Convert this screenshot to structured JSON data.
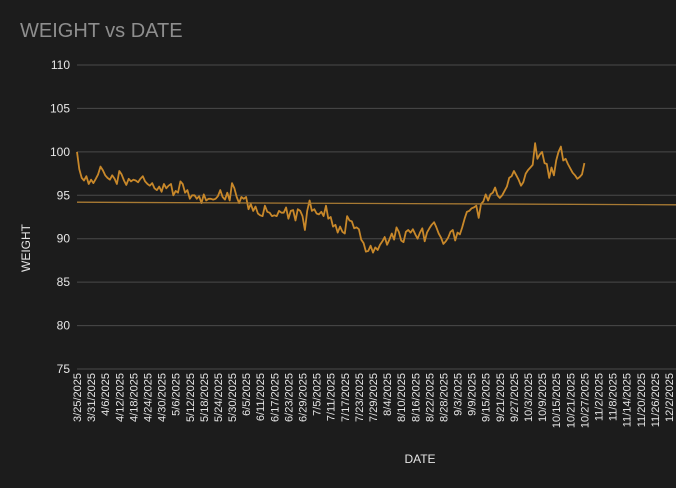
{
  "chart_data": {
    "type": "line",
    "title": "WEIGHT vs DATE",
    "xlabel": "DATE",
    "ylabel": "WEIGHT",
    "ylim": [
      75,
      110
    ],
    "yticks": [
      "110",
      "105",
      "100",
      "95",
      "90",
      "85",
      "80",
      "75"
    ],
    "xlim": [
      "3/25/2025",
      "12/5/2025"
    ],
    "xtick_labels": [
      "3/25/2025",
      "3/31/2025",
      "4/6/2025",
      "4/12/2025",
      "4/18/2025",
      "4/24/2025",
      "4/30/2025",
      "5/6/2025",
      "5/12/2025",
      "5/18/2025",
      "5/24/2025",
      "5/30/2025",
      "6/5/2025",
      "6/11/2025",
      "6/17/2025",
      "6/23/2025",
      "6/29/2025",
      "7/5/2025",
      "7/11/2025",
      "7/17/2025",
      "7/23/2025",
      "7/29/2025",
      "8/4/2025",
      "8/10/2025",
      "8/16/2025",
      "8/22/2025",
      "8/28/2025",
      "9/3/2025",
      "9/9/2025",
      "9/15/2025",
      "9/21/2025",
      "9/27/2025",
      "10/3/2025",
      "10/9/2025",
      "10/15/2025",
      "10/21/2025",
      "10/27/2025",
      "11/2/2025",
      "11/8/2025",
      "11/14/2025",
      "11/20/2025",
      "11/26/2025",
      "12/2/2025"
    ],
    "grid": true,
    "series": [
      {
        "color": "#c8882a",
        "points": [
          [
            "3/25/2025",
            100.0
          ],
          [
            "3/26/2025",
            98.0
          ],
          [
            "3/27/2025",
            97.0
          ],
          [
            "3/28/2025",
            96.7
          ],
          [
            "3/29/2025",
            97.2
          ],
          [
            "3/30/2025",
            96.3
          ],
          [
            "3/31/2025",
            96.8
          ],
          [
            "4/1/2025",
            96.4
          ],
          [
            "4/2/2025",
            96.9
          ],
          [
            "4/3/2025",
            97.4
          ],
          [
            "4/4/2025",
            98.3
          ],
          [
            "4/5/2025",
            97.9
          ],
          [
            "4/6/2025",
            97.3
          ],
          [
            "4/7/2025",
            97.0
          ],
          [
            "4/8/2025",
            96.8
          ],
          [
            "4/9/2025",
            97.3
          ],
          [
            "4/10/2025",
            96.9
          ],
          [
            "4/11/2025",
            96.3
          ],
          [
            "4/12/2025",
            97.8
          ],
          [
            "4/13/2025",
            97.4
          ],
          [
            "4/14/2025",
            96.7
          ],
          [
            "4/15/2025",
            96.2
          ],
          [
            "4/16/2025",
            96.9
          ],
          [
            "4/17/2025",
            96.6
          ],
          [
            "4/18/2025",
            96.8
          ],
          [
            "4/19/2025",
            96.7
          ],
          [
            "4/20/2025",
            96.5
          ],
          [
            "4/21/2025",
            96.9
          ],
          [
            "4/22/2025",
            97.2
          ],
          [
            "4/23/2025",
            96.6
          ],
          [
            "4/24/2025",
            96.3
          ],
          [
            "4/25/2025",
            96.1
          ],
          [
            "4/26/2025",
            96.4
          ],
          [
            "4/27/2025",
            95.8
          ],
          [
            "4/28/2025",
            95.6
          ],
          [
            "4/29/2025",
            96.0
          ],
          [
            "4/30/2025",
            95.4
          ],
          [
            "5/1/2025",
            96.3
          ],
          [
            "5/2/2025",
            95.8
          ],
          [
            "5/3/2025",
            96.1
          ],
          [
            "5/4/2025",
            96.3
          ],
          [
            "5/5/2025",
            95.0
          ],
          [
            "5/6/2025",
            95.5
          ],
          [
            "5/7/2025",
            95.3
          ],
          [
            "5/8/2025",
            96.6
          ],
          [
            "5/9/2025",
            96.3
          ],
          [
            "5/10/2025",
            95.3
          ],
          [
            "5/11/2025",
            95.6
          ],
          [
            "5/12/2025",
            94.6
          ],
          [
            "5/13/2025",
            95.0
          ],
          [
            "5/14/2025",
            95.0
          ],
          [
            "5/15/2025",
            94.6
          ],
          [
            "5/16/2025",
            94.9
          ],
          [
            "5/17/2025",
            94.1
          ],
          [
            "5/18/2025",
            95.1
          ],
          [
            "5/19/2025",
            94.4
          ],
          [
            "5/20/2025",
            94.6
          ],
          [
            "5/21/2025",
            94.6
          ],
          [
            "5/22/2025",
            94.5
          ],
          [
            "5/23/2025",
            94.6
          ],
          [
            "5/24/2025",
            94.9
          ],
          [
            "5/25/2025",
            95.6
          ],
          [
            "5/26/2025",
            94.8
          ],
          [
            "5/27/2025",
            94.5
          ],
          [
            "5/28/2025",
            95.3
          ],
          [
            "5/29/2025",
            94.4
          ],
          [
            "5/30/2025",
            96.4
          ],
          [
            "5/31/2025",
            95.8
          ],
          [
            "6/1/2025",
            94.8
          ],
          [
            "6/2/2025",
            94.1
          ],
          [
            "6/3/2025",
            94.8
          ],
          [
            "6/4/2025",
            94.6
          ],
          [
            "6/5/2025",
            94.8
          ],
          [
            "6/6/2025",
            93.4
          ],
          [
            "6/7/2025",
            94.0
          ],
          [
            "6/8/2025",
            93.2
          ],
          [
            "6/9/2025",
            93.7
          ],
          [
            "6/10/2025",
            92.9
          ],
          [
            "6/11/2025",
            92.7
          ],
          [
            "6/12/2025",
            92.6
          ],
          [
            "6/13/2025",
            93.8
          ],
          [
            "6/14/2025",
            93.1
          ],
          [
            "6/15/2025",
            93.0
          ],
          [
            "6/16/2025",
            92.6
          ],
          [
            "6/17/2025",
            92.7
          ],
          [
            "6/18/2025",
            92.6
          ],
          [
            "6/19/2025",
            93.2
          ],
          [
            "6/20/2025",
            93.0
          ],
          [
            "6/21/2025",
            93.0
          ],
          [
            "6/22/2025",
            93.6
          ],
          [
            "6/23/2025",
            92.3
          ],
          [
            "6/24/2025",
            93.2
          ],
          [
            "6/25/2025",
            93.3
          ],
          [
            "6/26/2025",
            92.1
          ],
          [
            "6/27/2025",
            93.4
          ],
          [
            "6/28/2025",
            93.2
          ],
          [
            "6/29/2025",
            92.6
          ],
          [
            "6/30/2025",
            91.0
          ],
          [
            "7/1/2025",
            93.2
          ],
          [
            "7/2/2025",
            94.4
          ],
          [
            "7/3/2025",
            93.2
          ],
          [
            "7/4/2025",
            93.4
          ],
          [
            "7/5/2025",
            92.9
          ],
          [
            "7/6/2025",
            92.8
          ],
          [
            "7/7/2025",
            93.1
          ],
          [
            "7/8/2025",
            92.6
          ],
          [
            "7/9/2025",
            93.8
          ],
          [
            "7/10/2025",
            92.3
          ],
          [
            "7/11/2025",
            92.5
          ],
          [
            "7/12/2025",
            91.4
          ],
          [
            "7/13/2025",
            91.6
          ],
          [
            "7/14/2025",
            90.7
          ],
          [
            "7/15/2025",
            91.4
          ],
          [
            "7/16/2025",
            90.8
          ],
          [
            "7/17/2025",
            90.6
          ],
          [
            "7/18/2025",
            92.6
          ],
          [
            "7/19/2025",
            92.1
          ],
          [
            "7/20/2025",
            92.0
          ],
          [
            "7/21/2025",
            91.2
          ],
          [
            "7/22/2025",
            91.3
          ],
          [
            "7/23/2025",
            91.1
          ],
          [
            "7/24/2025",
            89.9
          ],
          [
            "7/25/2025",
            89.5
          ],
          [
            "7/26/2025",
            88.5
          ],
          [
            "7/27/2025",
            88.6
          ],
          [
            "7/28/2025",
            89.2
          ],
          [
            "7/29/2025",
            88.4
          ],
          [
            "7/30/2025",
            89.0
          ],
          [
            "7/31/2025",
            88.7
          ],
          [
            "8/1/2025",
            89.3
          ],
          [
            "8/2/2025",
            89.7
          ],
          [
            "8/3/2025",
            90.2
          ],
          [
            "8/4/2025",
            89.3
          ],
          [
            "8/5/2025",
            89.9
          ],
          [
            "8/6/2025",
            90.6
          ],
          [
            "8/7/2025",
            89.9
          ],
          [
            "8/8/2025",
            91.3
          ],
          [
            "8/9/2025",
            90.8
          ],
          [
            "8/10/2025",
            89.8
          ],
          [
            "8/11/2025",
            89.6
          ],
          [
            "8/12/2025",
            90.8
          ],
          [
            "8/13/2025",
            91.0
          ],
          [
            "8/14/2025",
            90.7
          ],
          [
            "8/15/2025",
            91.1
          ],
          [
            "8/16/2025",
            90.5
          ],
          [
            "8/17/2025",
            90.0
          ],
          [
            "8/18/2025",
            90.7
          ],
          [
            "8/19/2025",
            91.2
          ],
          [
            "8/20/2025",
            89.7
          ],
          [
            "8/21/2025",
            90.7
          ],
          [
            "8/22/2025",
            91.2
          ],
          [
            "8/23/2025",
            91.6
          ],
          [
            "8/24/2025",
            91.9
          ],
          [
            "8/25/2025",
            91.3
          ],
          [
            "8/26/2025",
            90.6
          ],
          [
            "8/27/2025",
            90.1
          ],
          [
            "8/28/2025",
            89.4
          ],
          [
            "8/29/2025",
            89.7
          ],
          [
            "8/30/2025",
            90.1
          ],
          [
            "8/31/2025",
            90.8
          ],
          [
            "9/1/2025",
            91.0
          ],
          [
            "9/2/2025",
            89.8
          ],
          [
            "9/3/2025",
            90.7
          ],
          [
            "9/4/2025",
            90.5
          ],
          [
            "9/5/2025",
            91.3
          ],
          [
            "9/6/2025",
            92.3
          ],
          [
            "9/7/2025",
            93.1
          ],
          [
            "9/8/2025",
            93.2
          ],
          [
            "9/9/2025",
            93.5
          ],
          [
            "9/10/2025",
            93.6
          ],
          [
            "9/11/2025",
            93.8
          ],
          [
            "9/12/2025",
            92.4
          ],
          [
            "9/13/2025",
            94.0
          ],
          [
            "9/14/2025",
            94.3
          ],
          [
            "9/15/2025",
            95.1
          ],
          [
            "9/16/2025",
            94.4
          ],
          [
            "9/17/2025",
            95.1
          ],
          [
            "9/18/2025",
            95.3
          ],
          [
            "9/19/2025",
            95.9
          ],
          [
            "9/20/2025",
            95.0
          ],
          [
            "9/21/2025",
            94.7
          ],
          [
            "9/22/2025",
            95.0
          ],
          [
            "9/23/2025",
            95.5
          ],
          [
            "9/24/2025",
            96.0
          ],
          [
            "9/25/2025",
            97.0
          ],
          [
            "9/26/2025",
            97.2
          ],
          [
            "9/27/2025",
            97.8
          ],
          [
            "9/28/2025",
            97.3
          ],
          [
            "9/29/2025",
            96.8
          ],
          [
            "9/30/2025",
            96.1
          ],
          [
            "10/1/2025",
            96.5
          ],
          [
            "10/2/2025",
            97.5
          ],
          [
            "10/3/2025",
            97.9
          ],
          [
            "10/4/2025",
            98.2
          ],
          [
            "10/5/2025",
            98.5
          ],
          [
            "10/6/2025",
            101.0
          ],
          [
            "10/7/2025",
            99.2
          ],
          [
            "10/8/2025",
            99.7
          ],
          [
            "10/9/2025",
            100.0
          ],
          [
            "10/10/2025",
            98.7
          ],
          [
            "10/11/2025",
            98.6
          ],
          [
            "10/12/2025",
            97.0
          ],
          [
            "10/13/2025",
            98.2
          ],
          [
            "10/14/2025",
            97.3
          ],
          [
            "10/15/2025",
            99.0
          ],
          [
            "10/16/2025",
            100.0
          ],
          [
            "10/17/2025",
            100.6
          ],
          [
            "10/18/2025",
            99.0
          ],
          [
            "10/19/2025",
            99.2
          ],
          [
            "10/20/2025",
            98.6
          ],
          [
            "10/21/2025",
            98.1
          ],
          [
            "10/22/2025",
            97.6
          ],
          [
            "10/23/2025",
            97.3
          ],
          [
            "10/24/2025",
            96.9
          ],
          [
            "10/25/2025",
            97.1
          ],
          [
            "10/26/2025",
            97.4
          ],
          [
            "10/27/2025",
            98.7
          ]
        ]
      },
      {
        "color": "#a87a33",
        "points": [
          [
            "3/25/2025",
            94.2
          ],
          [
            "12/5/2025",
            93.9
          ]
        ]
      }
    ]
  }
}
